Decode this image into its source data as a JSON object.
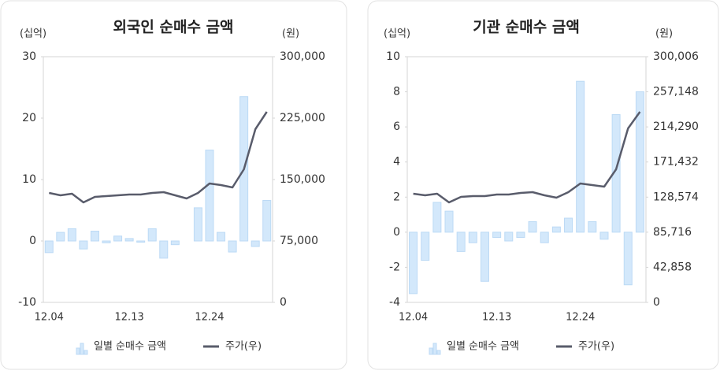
{
  "chart_data": [
    {
      "type": "bar_line",
      "title": "외국인 순매수 금액",
      "y_unit": "(십억)",
      "y2_unit": "(원)",
      "categories": [
        "12.04",
        null,
        null,
        null,
        null,
        null,
        null,
        "12.13",
        null,
        null,
        null,
        null,
        null,
        null,
        "12.24",
        null,
        null,
        null,
        null,
        null
      ],
      "series": [
        {
          "name": "일별 순매수 금액",
          "type": "bar",
          "color": "#d3e8fb",
          "values": [
            -1.9,
            1.4,
            2.0,
            -1.3,
            1.6,
            -0.3,
            0.8,
            0.4,
            -0.2,
            2.0,
            -2.8,
            -0.6,
            0,
            5.4,
            14.8,
            1.4,
            -1.8,
            23.5,
            -0.9,
            6.6
          ]
        },
        {
          "name": "주가(우)",
          "type": "line",
          "axis": "y2",
          "color": "#595c6b",
          "values": [
            133700,
            130800,
            132700,
            122100,
            128800,
            129800,
            130800,
            131700,
            131700,
            133700,
            134600,
            130800,
            126900,
            133700,
            145200,
            143300,
            140400,
            162500,
            211500,
            232700
          ]
        }
      ],
      "ylim": [
        -10,
        30
      ],
      "yticks": [
        -10,
        0,
        10,
        20,
        30
      ],
      "y2lim": [
        0,
        300000
      ],
      "y2ticks": [
        0,
        {
          "value": 75000,
          "label": "75,000"
        },
        {
          "value": 150000,
          "label": "150,000"
        },
        {
          "value": 225000,
          "label": "225,000"
        },
        {
          "value": 300000,
          "label": "300,000"
        }
      ]
    },
    {
      "type": "bar_line",
      "title": "기관 순매수 금액",
      "y_unit": "(십억)",
      "y2_unit": "(원)",
      "categories": [
        "12.04",
        null,
        null,
        null,
        null,
        null,
        null,
        "12.13",
        null,
        null,
        null,
        null,
        null,
        null,
        "12.24",
        null,
        null,
        null,
        null,
        null
      ],
      "series": [
        {
          "name": "일별 순매수 금액",
          "type": "bar",
          "color": "#d3e8fb",
          "values": [
            -3.5,
            -1.6,
            1.7,
            1.2,
            -1.1,
            -0.6,
            -2.8,
            -0.3,
            -0.5,
            -0.3,
            0.6,
            -0.6,
            0.3,
            0.8,
            8.6,
            0.6,
            -0.4,
            6.7,
            -3.0,
            8.0
          ]
        },
        {
          "name": "주가(우)",
          "type": "line",
          "axis": "y2",
          "color": "#595c6b",
          "values": [
            132695,
            130772,
            132695,
            122118,
            128849,
            129810,
            129810,
            131734,
            131734,
            133657,
            134618,
            130772,
            127887,
            134618,
            145198,
            143275,
            141352,
            162503,
            212504,
            232697
          ]
        }
      ],
      "ylim": [
        -4,
        10
      ],
      "yticks": [
        -4,
        -2,
        0,
        2,
        4,
        6,
        8,
        10
      ],
      "y2lim": [
        0,
        300006
      ],
      "y2ticks": [
        0,
        {
          "value": 42858,
          "label": "42,858"
        },
        {
          "value": 85716,
          "label": "85,716"
        },
        {
          "value": 128574,
          "label": "128,574"
        },
        {
          "value": 171432,
          "label": "171,432"
        },
        {
          "value": 214290,
          "label": "214,290"
        },
        {
          "value": 257148,
          "label": "257,148"
        },
        {
          "value": 300006,
          "label": "300,006"
        }
      ]
    }
  ]
}
